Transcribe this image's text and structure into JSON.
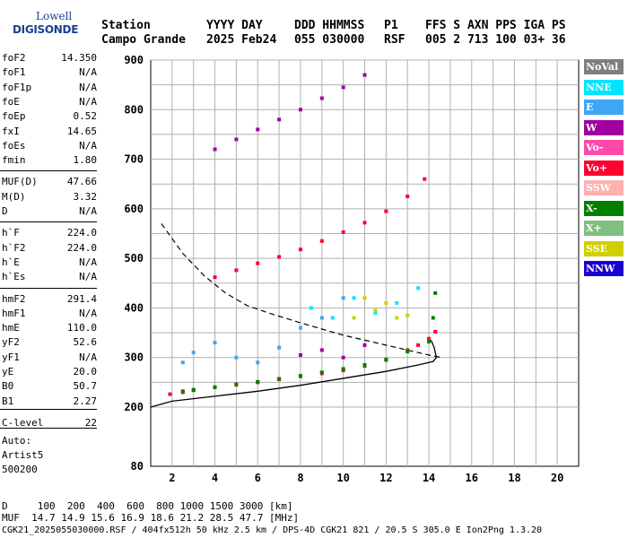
{
  "logo": {
    "line1": "Lowell",
    "line2": "DIGISONDE"
  },
  "header": {
    "station_label": "Station",
    "station_name": "Campo Grande",
    "date_labels": "YYYY DAY",
    "date_values": "2025 Feb24",
    "time_labels": "DDD HHMMSS",
    "time_values": "055 030000",
    "p1_label": "P1",
    "p1_value": "RSF",
    "rest_labels": "FFS S AXN PPS IGA PS",
    "rest_values": "005 2 713 100 03+ 36"
  },
  "params": [
    {
      "name": "foF2",
      "value": "14.350"
    },
    {
      "name": "foF1",
      "value": "N/A"
    },
    {
      "name": "foF1p",
      "value": "N/A"
    },
    {
      "name": "foE",
      "value": "N/A"
    },
    {
      "name": "foEp",
      "value": "0.52"
    },
    {
      "name": "fxI",
      "value": "14.65"
    },
    {
      "name": "foEs",
      "value": "N/A"
    },
    {
      "name": "fmin",
      "value": "1.80"
    },
    {
      "name": "MUF(D)",
      "value": "47.66"
    },
    {
      "name": "M(D)",
      "value": "3.32"
    },
    {
      "name": "D",
      "value": "N/A"
    },
    {
      "name": "h`F",
      "value": "224.0"
    },
    {
      "name": "h`F2",
      "value": "224.0"
    },
    {
      "name": "h`E",
      "value": "N/A"
    },
    {
      "name": "h`Es",
      "value": "N/A"
    },
    {
      "name": "hmF2",
      "value": "291.4"
    },
    {
      "name": "hmF1",
      "value": "N/A"
    },
    {
      "name": "hmE",
      "value": "110.0"
    },
    {
      "name": "yF2",
      "value": "52.6"
    },
    {
      "name": "yF1",
      "value": "N/A"
    },
    {
      "name": "yE",
      "value": "20.0"
    },
    {
      "name": "B0",
      "value": "50.7"
    },
    {
      "name": "B1",
      "value": "2.27"
    },
    {
      "name": "C-level",
      "value": "22"
    }
  ],
  "auto": {
    "line1": "Auto:",
    "line2": "Artist5",
    "line3": "500200"
  },
  "legend": [
    {
      "label": "NoVal",
      "color": "#7f7f7f"
    },
    {
      "label": "NNE",
      "color": "#00e5ff"
    },
    {
      "label": "E",
      "color": "#3ea6f5"
    },
    {
      "label": "W",
      "color": "#a0009f"
    },
    {
      "label": "Vo-",
      "color": "#ff49a9"
    },
    {
      "label": "Vo+",
      "color": "#ff0030"
    },
    {
      "label": "SSW",
      "color": "#ffb0b0"
    },
    {
      "label": "X-",
      "color": "#007f00"
    },
    {
      "label": "X+",
      "color": "#7fbf7f"
    },
    {
      "label": "SSE",
      "color": "#d0d000"
    },
    {
      "label": "NNW",
      "color": "#1a00d0"
    }
  ],
  "bottom": {
    "line1": "D     100  200  400  600  800 1000 1500 3000 [km]",
    "line2": "MUF  14.7 14.9 15.6 16.9 18.6 21.2 28.5 47.7 [MHz]",
    "line3": "CGK21_2025055030000.RSF / 404fx512h 50 kHz 2.5 km / DPS-4D CGK21 821 / 20.5 S 305.0 E Ion2Png 1.3.20"
  },
  "chart_data": {
    "type": "scatter",
    "xlim": [
      1,
      21
    ],
    "ylim": [
      80,
      900
    ],
    "x_ticks": [
      2,
      4,
      6,
      8,
      10,
      12,
      14,
      16,
      18,
      20
    ],
    "y_ticks": [
      80,
      200,
      300,
      400,
      500,
      600,
      700,
      800,
      900
    ],
    "grid": true,
    "legend_position": "right",
    "series": [
      {
        "name": "Vo+",
        "color": "#ff0030",
        "x": [
          1.9,
          2.5,
          3.0,
          4.0,
          5.0,
          6.0,
          7.0,
          8.0,
          9.0,
          10.0,
          11.0,
          12.0,
          13.0,
          13.5,
          14.0,
          14.3
        ],
        "y": [
          226,
          230,
          234,
          240,
          245,
          250,
          256,
          262,
          268,
          274,
          283,
          295,
          315,
          325,
          338,
          352
        ]
      },
      {
        "name": "X-",
        "color": "#007f00",
        "x": [
          2.5,
          3.0,
          4.0,
          5.0,
          6.0,
          7.0,
          8.0,
          9.0,
          10.0,
          11.0,
          12.0,
          13.0,
          14.0,
          14.2,
          14.3
        ],
        "y": [
          232,
          235,
          240,
          246,
          251,
          257,
          263,
          270,
          277,
          285,
          296,
          312,
          332,
          380,
          430
        ]
      },
      {
        "name": "Vo+",
        "color": "#ff0030",
        "x": [
          4.0,
          5.0,
          6.0,
          7.0,
          8.0,
          9.0,
          10.0,
          11.0,
          12.0,
          13.0,
          13.8
        ],
        "y": [
          462,
          476,
          490,
          503,
          518,
          535,
          553,
          572,
          595,
          625,
          660
        ]
      },
      {
        "name": "W",
        "color": "#a0009f",
        "x": [
          4.0,
          5.0,
          6.0,
          7.0,
          8.0,
          9.0,
          10.0,
          11.0
        ],
        "y": [
          720,
          740,
          760,
          780,
          800,
          823,
          845,
          870
        ]
      },
      {
        "name": "E",
        "color": "#3ea6f5",
        "x": [
          2.5,
          3.0,
          4.0,
          5.0,
          6.0,
          7.0,
          8.0,
          9.0,
          10.0
        ],
        "y": [
          290,
          310,
          330,
          300,
          290,
          320,
          360,
          380,
          420
        ]
      },
      {
        "name": "NNE",
        "color": "#00e5ff",
        "x": [
          8.5,
          9.5,
          10.5,
          11.5,
          12.5,
          13.5
        ],
        "y": [
          400,
          380,
          420,
          390,
          410,
          440
        ]
      },
      {
        "name": "SSE",
        "color": "#d0d000",
        "x": [
          10.5,
          11.0,
          11.5,
          12.0,
          12.5,
          13.0
        ],
        "y": [
          380,
          420,
          395,
          410,
          380,
          385
        ]
      },
      {
        "name": "W",
        "color": "#a0009f",
        "x": [
          8.0,
          9.0,
          10.0,
          11.0
        ],
        "y": [
          305,
          315,
          300,
          325
        ]
      }
    ],
    "profile_curve": {
      "x": [
        1.0,
        2.0,
        4.0,
        6.0,
        8.0,
        10.0,
        12.0,
        13.5,
        14.2,
        14.35,
        14.25,
        14.1
      ],
      "y": [
        200,
        212,
        222,
        232,
        244,
        258,
        272,
        285,
        292,
        300,
        320,
        335
      ]
    },
    "muf_curve": {
      "x": [
        1.5,
        2.5,
        3.5,
        4.5,
        5.5,
        6.5,
        8.0,
        10.0,
        12.0,
        14.0,
        14.6
      ],
      "y": [
        570,
        510,
        465,
        430,
        405,
        390,
        370,
        345,
        325,
        305,
        300
      ]
    }
  }
}
